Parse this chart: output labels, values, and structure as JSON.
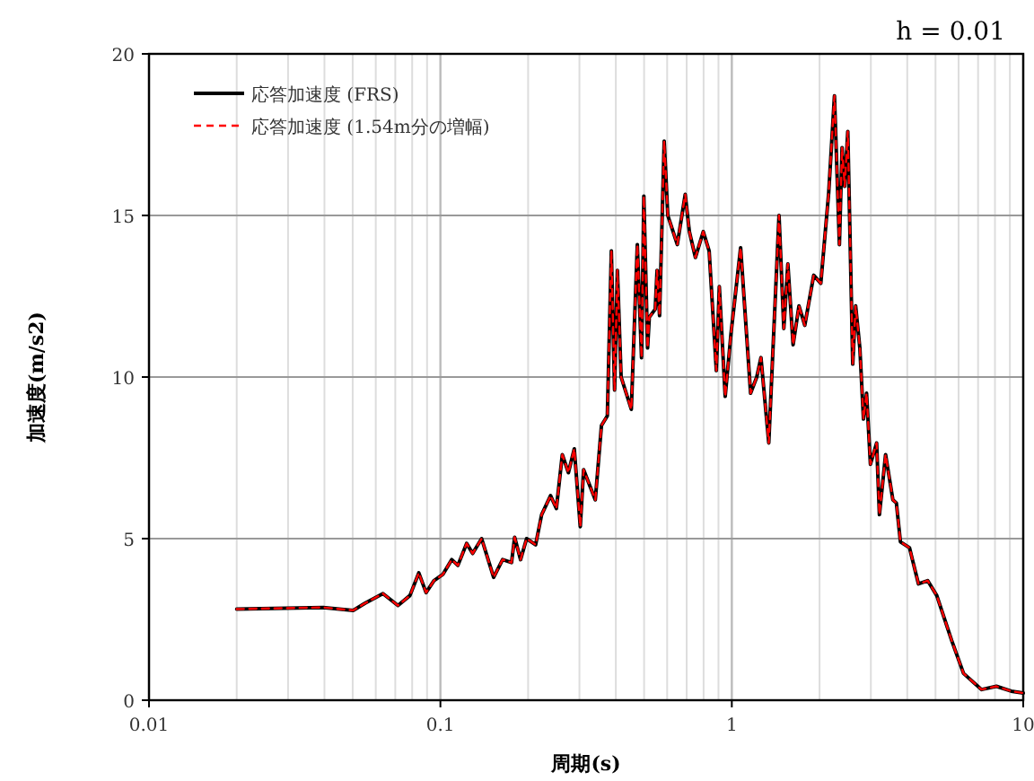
{
  "chart_data": {
    "type": "line",
    "title": "h = 0.01",
    "xlabel": "周期(s)",
    "ylabel": "加速度(m/s2)",
    "log": "x",
    "grid": true,
    "legend": "top left",
    "xlim": [
      0.01,
      10
    ],
    "xticks": [
      0.01,
      0.1,
      1,
      10
    ],
    "ylim": [
      0,
      20
    ],
    "yticks": [
      0,
      5,
      10,
      15,
      20
    ],
    "x": [
      0.02,
      0.0396,
      0.0502,
      0.0551,
      0.0635,
      0.0715,
      0.0786,
      0.0843,
      0.0893,
      0.095,
      0.1019,
      0.1094,
      0.1148,
      0.123,
      0.129,
      0.1385,
      0.1523,
      0.1635,
      0.1754,
      0.1798,
      0.1884,
      0.1976,
      0.2122,
      0.2225,
      0.2388,
      0.25,
      0.262,
      0.275,
      0.288,
      0.302,
      0.31,
      0.34,
      0.357,
      0.374,
      0.386,
      0.396,
      0.405,
      0.417,
      0.452,
      0.474,
      0.49,
      0.499,
      0.514,
      0.521,
      0.546,
      0.554,
      0.565,
      0.586,
      0.603,
      0.65,
      0.692,
      0.715,
      0.75,
      0.798,
      0.836,
      0.885,
      0.906,
      0.949,
      0.995,
      1.072,
      1.16,
      1.218,
      1.259,
      1.339,
      1.452,
      1.508,
      1.557,
      1.623,
      1.7,
      1.78,
      1.91,
      2.02,
      2.15,
      2.25,
      2.34,
      2.39,
      2.44,
      2.5,
      2.6,
      2.66,
      2.75,
      2.83,
      2.9,
      2.99,
      3.14,
      3.21,
      3.37,
      3.57,
      3.67,
      3.79,
      4.07,
      4.37,
      4.7,
      5.05,
      5.68,
      6.24,
      7.19,
      8.09,
      9.1,
      10
    ],
    "series": [
      {
        "name": "応答加速度 (FRS)",
        "color": "#000000",
        "line_style": "solid",
        "values": [
          2.82,
          2.87,
          2.78,
          3.0,
          3.3,
          2.93,
          3.24,
          3.94,
          3.33,
          3.7,
          3.89,
          4.35,
          4.17,
          4.85,
          4.54,
          5.0,
          3.8,
          4.35,
          4.26,
          5.04,
          4.35,
          5.0,
          4.81,
          5.74,
          6.33,
          5.93,
          7.6,
          7.04,
          7.78,
          5.37,
          7.13,
          6.2,
          8.5,
          8.8,
          13.9,
          9.6,
          13.3,
          10.0,
          9.0,
          14.1,
          10.6,
          15.6,
          10.9,
          11.85,
          12.1,
          13.3,
          11.9,
          17.3,
          15.0,
          14.1,
          15.65,
          14.5,
          13.7,
          14.5,
          13.9,
          10.2,
          12.8,
          9.4,
          11.4,
          14.0,
          9.5,
          10.0,
          10.6,
          7.96,
          15.0,
          11.5,
          13.5,
          11.0,
          12.2,
          11.6,
          13.15,
          12.9,
          15.7,
          18.7,
          14.1,
          17.1,
          15.9,
          17.6,
          10.4,
          12.2,
          10.9,
          8.7,
          9.5,
          7.3,
          7.96,
          5.74,
          7.6,
          6.2,
          6.1,
          4.9,
          4.72,
          3.6,
          3.7,
          3.24,
          1.85,
          0.83,
          0.33,
          0.43,
          0.28,
          0.22
        ]
      },
      {
        "name": "応答加速度 (1.54m分の増幅)",
        "color": "#ff0000",
        "line_style": "dashed",
        "values": [
          2.82,
          2.87,
          2.78,
          3.0,
          3.3,
          2.93,
          3.24,
          3.94,
          3.33,
          3.7,
          3.89,
          4.35,
          4.17,
          4.85,
          4.54,
          5.0,
          3.8,
          4.35,
          4.26,
          5.04,
          4.35,
          5.0,
          4.81,
          5.74,
          6.33,
          5.93,
          7.6,
          7.04,
          7.78,
          5.37,
          7.13,
          6.2,
          8.5,
          8.8,
          13.9,
          9.6,
          13.3,
          10.0,
          9.0,
          14.1,
          10.6,
          15.6,
          10.9,
          11.85,
          12.1,
          13.3,
          11.9,
          17.3,
          15.0,
          14.1,
          15.65,
          14.5,
          13.7,
          14.5,
          13.9,
          10.2,
          12.8,
          9.4,
          11.4,
          14.0,
          9.5,
          10.0,
          10.6,
          7.96,
          15.0,
          11.5,
          13.5,
          11.0,
          12.2,
          11.6,
          13.15,
          12.9,
          15.7,
          18.7,
          14.1,
          17.1,
          15.9,
          17.6,
          10.4,
          12.2,
          10.9,
          8.7,
          9.5,
          7.3,
          7.96,
          5.74,
          7.6,
          6.2,
          6.1,
          4.9,
          4.72,
          3.6,
          3.7,
          3.24,
          1.85,
          0.83,
          0.33,
          0.43,
          0.28,
          0.22
        ]
      }
    ]
  }
}
